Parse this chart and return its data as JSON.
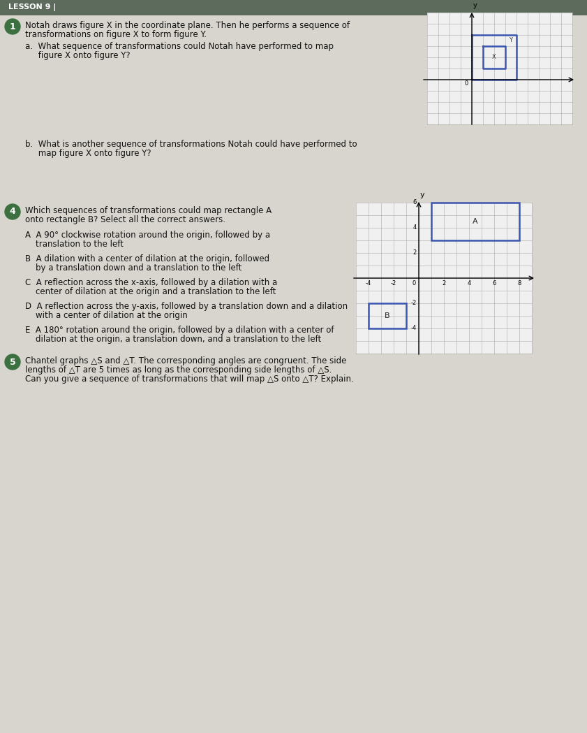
{
  "bg_color": "#d8d5ce",
  "page_color": "#e8e6e0",
  "top_bar_color": "#5c6b5c",
  "green_color": "#3d7040",
  "q1_line1": "Notah draws figure X in the coordinate plane. Then he performs a sequence of",
  "q1_line2": "transformations on figure X to form figure Y.",
  "q1a_line1": "a.  What sequence of transformations could Notah have performed to map",
  "q1a_line2": "     figure X onto figure Y?",
  "q1b_line1": "b.  What is another sequence of transformations Notah could have performed to",
  "q1b_line2": "     map figure X onto figure Y?",
  "q4_line1": "Which sequences of transformations could map rectangle A",
  "q4_line2": "onto rectangle B? Select all the correct answers.",
  "q4A_line1": "A  A 90° clockwise rotation around the origin, followed by a",
  "q4A_line2": "    translation to the left",
  "q4B_line1": "B  A dilation with a center of dilation at the origin, followed",
  "q4B_line2": "    by a translation down and a translation to the left",
  "q4C_line1": "C  A reflection across the x-axis, followed by a dilation with a",
  "q4C_line2": "    center of dilation at the origin and a translation to the left",
  "q4D_line1": "D  A reflection across the y-axis, followed by a translation down and a dilation",
  "q4D_line2": "    with a center of dilation at the origin",
  "q4E_line1": "E  A 180° rotation around the origin, followed by a dilation with a center of",
  "q4E_line2": "    dilation at the origin, a translation down, and a translation to the left",
  "q5_line1": "Chantel graphs △S and △T. The corresponding angles are congruent. The side",
  "q5_line2": "lengths of △T are 5 times as long as the corresponding side lengths of △S.",
  "q5_line3": "Can you give a sequence of transformations that will map △S onto △T? Explain.",
  "rect_blue": "#3a55b0",
  "grid_line_color": "#aaaaaa",
  "axis_color": "#333333"
}
